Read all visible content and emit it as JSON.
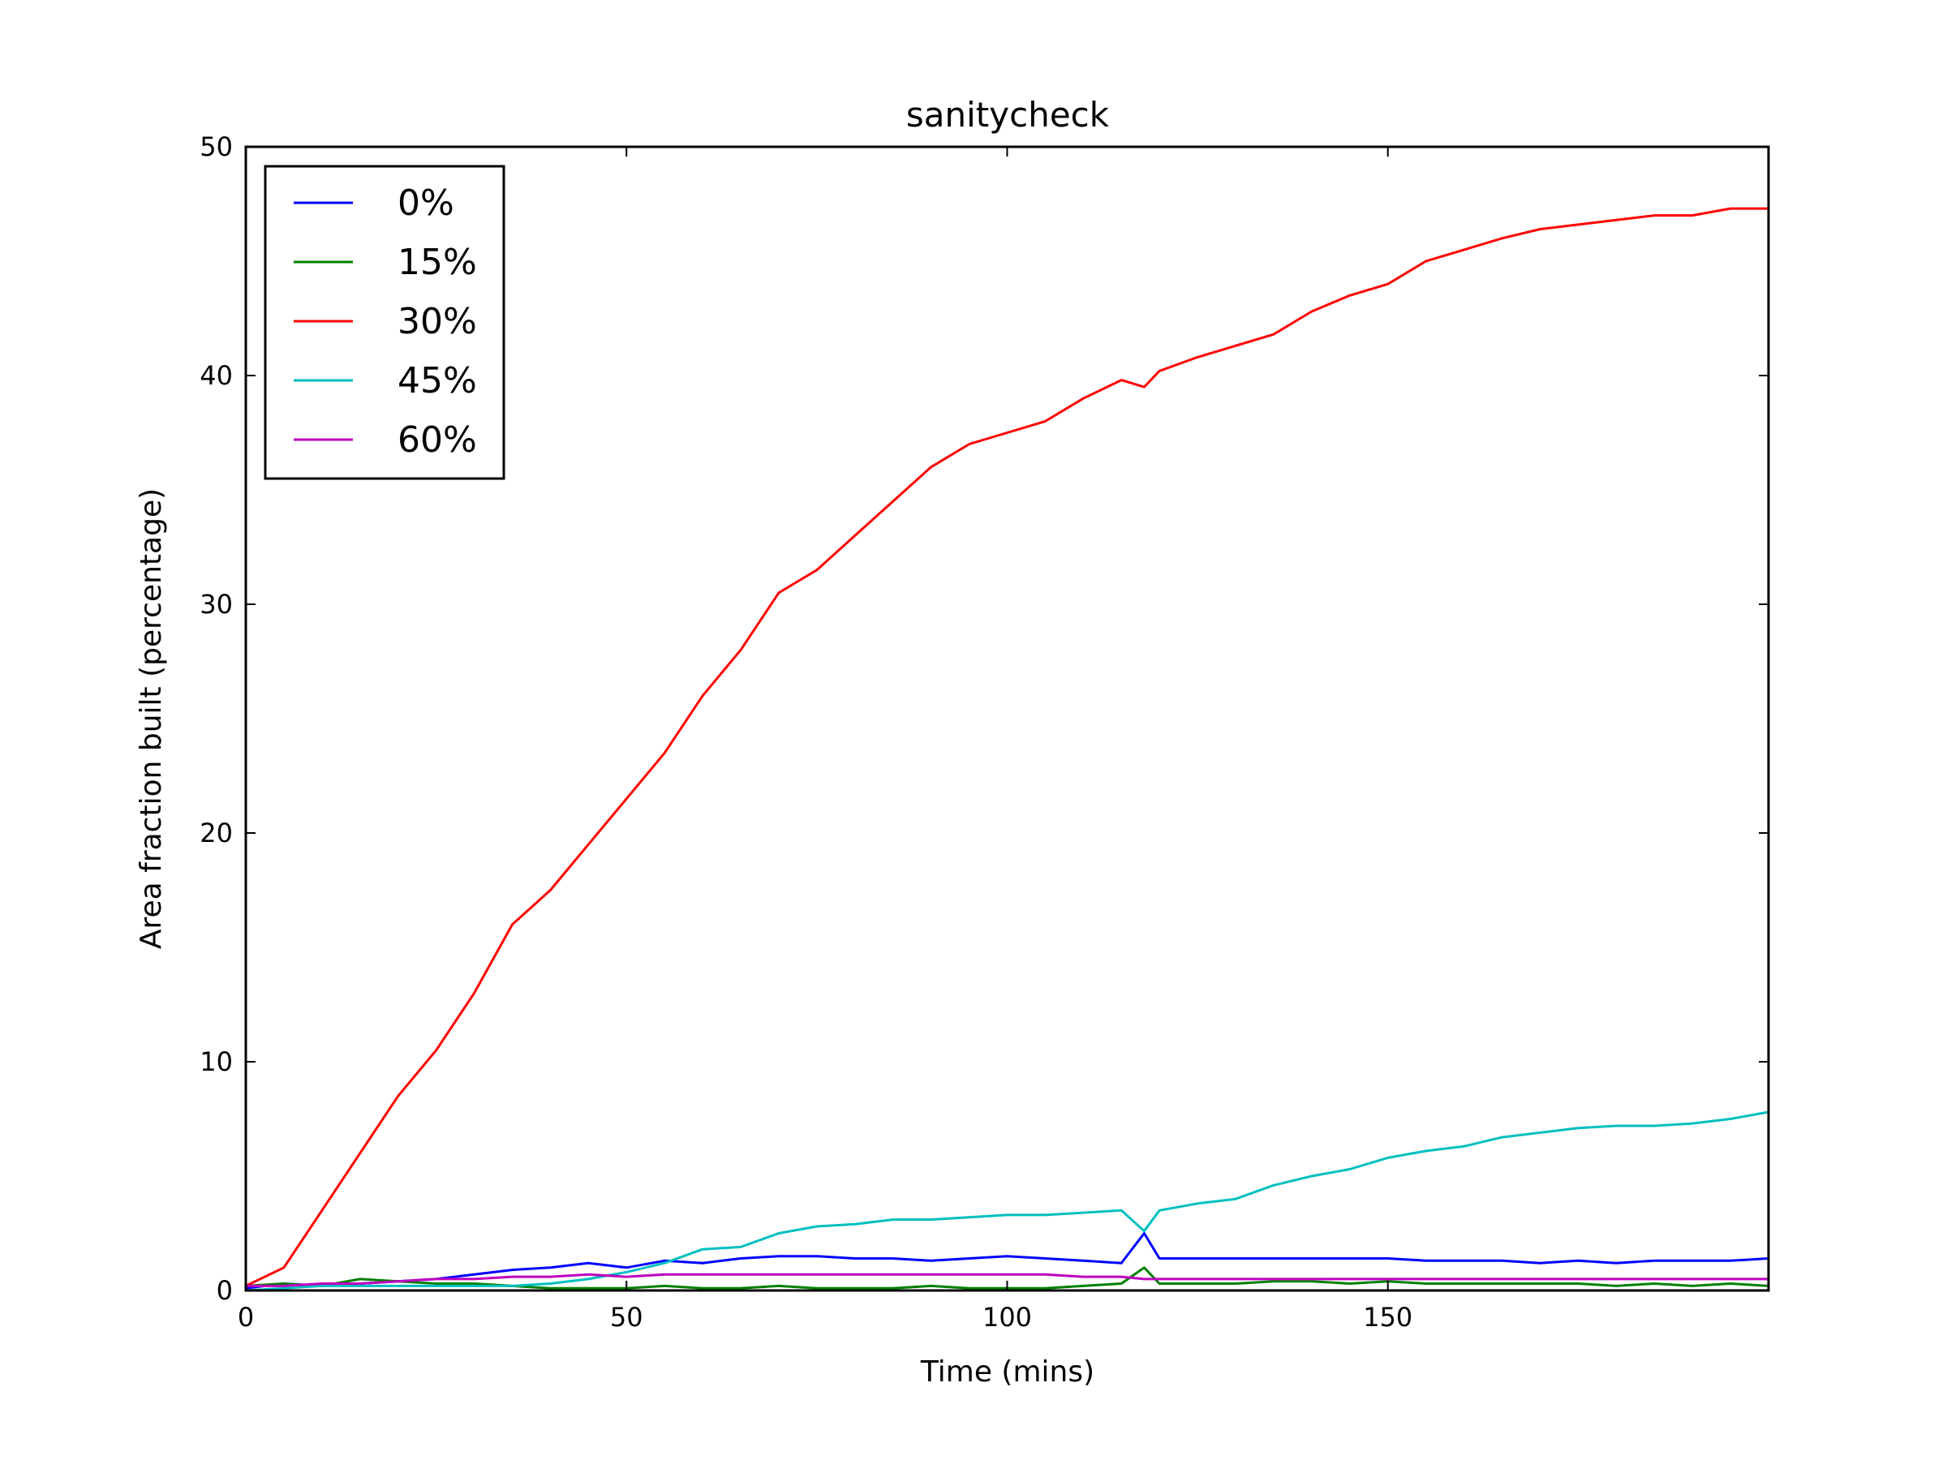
{
  "chart_data": {
    "type": "line",
    "title": "sanitycheck",
    "xlabel": "Time (mins)",
    "ylabel": "Area fraction built (percentage)",
    "xlim": [
      0,
      200
    ],
    "ylim": [
      0,
      50
    ],
    "xticks": [
      0,
      50,
      100,
      150
    ],
    "yticks": [
      0,
      10,
      20,
      30,
      40,
      50
    ],
    "grid": false,
    "legend_position": "top-left",
    "x": [
      0,
      5,
      10,
      15,
      20,
      25,
      30,
      35,
      40,
      45,
      50,
      55,
      60,
      65,
      70,
      75,
      80,
      85,
      90,
      95,
      100,
      105,
      110,
      115,
      118,
      120,
      125,
      130,
      135,
      140,
      145,
      150,
      155,
      160,
      165,
      170,
      175,
      180,
      185,
      190,
      195,
      200
    ],
    "series": [
      {
        "name": "0%",
        "color": "#0000ff",
        "values": [
          0.1,
          0.3,
          0.2,
          0.3,
          0.4,
          0.5,
          0.7,
          0.9,
          1.0,
          1.2,
          1.0,
          1.3,
          1.2,
          1.4,
          1.5,
          1.5,
          1.4,
          1.4,
          1.3,
          1.4,
          1.5,
          1.4,
          1.3,
          1.2,
          2.5,
          1.4,
          1.4,
          1.4,
          1.4,
          1.4,
          1.4,
          1.4,
          1.3,
          1.3,
          1.3,
          1.2,
          1.3,
          1.2,
          1.3,
          1.3,
          1.3,
          1.4
        ]
      },
      {
        "name": "15%",
        "color": "#008000",
        "values": [
          0.2,
          0.3,
          0.2,
          0.5,
          0.4,
          0.3,
          0.3,
          0.2,
          0.1,
          0.1,
          0.1,
          0.2,
          0.1,
          0.1,
          0.2,
          0.1,
          0.1,
          0.1,
          0.2,
          0.1,
          0.1,
          0.1,
          0.2,
          0.3,
          1.0,
          0.3,
          0.3,
          0.3,
          0.4,
          0.4,
          0.3,
          0.4,
          0.3,
          0.3,
          0.3,
          0.3,
          0.3,
          0.2,
          0.3,
          0.2,
          0.3,
          0.2
        ]
      },
      {
        "name": "30%",
        "color": "#ff0000",
        "values": [
          0.2,
          1.0,
          3.5,
          6.0,
          8.5,
          10.5,
          13.0,
          16.0,
          17.5,
          19.5,
          21.5,
          23.5,
          26.0,
          28.0,
          30.5,
          31.5,
          33.0,
          34.5,
          36.0,
          37.0,
          37.5,
          38.0,
          39.0,
          39.8,
          39.5,
          40.2,
          40.8,
          41.3,
          41.8,
          42.8,
          43.5,
          44.0,
          45.0,
          45.5,
          46.0,
          46.4,
          46.6,
          46.8,
          47.0,
          47.0,
          47.3,
          47.3
        ]
      },
      {
        "name": "45%",
        "color": "#00bfbf",
        "values": [
          0.0,
          0.1,
          0.2,
          0.2,
          0.2,
          0.2,
          0.2,
          0.2,
          0.3,
          0.5,
          0.8,
          1.2,
          1.8,
          1.9,
          2.5,
          2.8,
          2.9,
          3.1,
          3.1,
          3.2,
          3.3,
          3.3,
          3.4,
          3.5,
          2.6,
          3.5,
          3.8,
          4.0,
          4.6,
          5.0,
          5.3,
          5.8,
          6.1,
          6.3,
          6.7,
          6.9,
          7.1,
          7.2,
          7.2,
          7.3,
          7.5,
          7.8
        ]
      },
      {
        "name": "60%",
        "color": "#bf00bf",
        "values": [
          0.2,
          0.2,
          0.3,
          0.3,
          0.4,
          0.5,
          0.5,
          0.6,
          0.6,
          0.7,
          0.6,
          0.7,
          0.7,
          0.7,
          0.7,
          0.7,
          0.7,
          0.7,
          0.7,
          0.7,
          0.7,
          0.7,
          0.6,
          0.6,
          0.5,
          0.5,
          0.5,
          0.5,
          0.5,
          0.5,
          0.5,
          0.5,
          0.5,
          0.5,
          0.5,
          0.5,
          0.5,
          0.5,
          0.5,
          0.5,
          0.5,
          0.5
        ]
      }
    ]
  }
}
